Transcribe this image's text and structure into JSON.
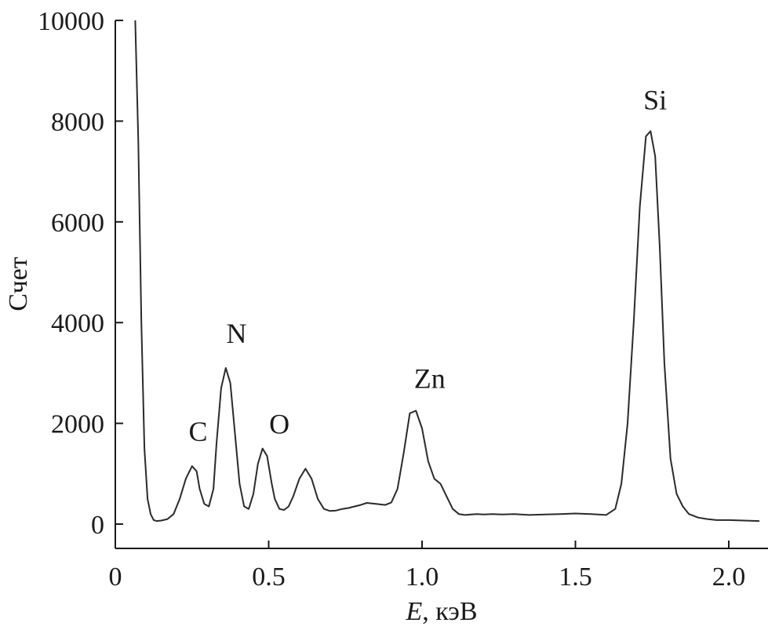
{
  "chart_data": {
    "type": "line",
    "title": "",
    "xlabel_italic": "E",
    "xlabel_rest": ", кэВ",
    "ylabel": "Счет",
    "xlim": [
      0,
      2.1
    ],
    "ylim": [
      0,
      10000
    ],
    "x_ticks": [
      {
        "value": 0,
        "label": "0"
      },
      {
        "value": 0.5,
        "label": "0.5"
      },
      {
        "value": 1.0,
        "label": "1.0"
      },
      {
        "value": 1.5,
        "label": "1.5"
      },
      {
        "value": 2.0,
        "label": "2.0"
      }
    ],
    "y_ticks": [
      {
        "value": 0,
        "label": "0"
      },
      {
        "value": 2000,
        "label": "2000"
      },
      {
        "value": 4000,
        "label": "4000"
      },
      {
        "value": 6000,
        "label": "6000"
      },
      {
        "value": 8000,
        "label": "8000"
      },
      {
        "value": 10000,
        "label": "10000"
      }
    ],
    "grid": false,
    "annotations": [
      {
        "text": "C",
        "x": 0.27,
        "y": 1650
      },
      {
        "text": "N",
        "x": 0.395,
        "y": 3600
      },
      {
        "text": "O",
        "x": 0.535,
        "y": 1800
      },
      {
        "text": "Zn",
        "x": 1.025,
        "y": 2700
      },
      {
        "text": "Si",
        "x": 1.76,
        "y": 8230
      }
    ],
    "series": [
      {
        "x": [
          0.065,
          0.075,
          0.085,
          0.095,
          0.105,
          0.115,
          0.125,
          0.135,
          0.15,
          0.17,
          0.19,
          0.21,
          0.23,
          0.25,
          0.265,
          0.275,
          0.29,
          0.305,
          0.32,
          0.33,
          0.345,
          0.36,
          0.375,
          0.39,
          0.405,
          0.42,
          0.435,
          0.45,
          0.465,
          0.48,
          0.495,
          0.51,
          0.52,
          0.535,
          0.55,
          0.565,
          0.58,
          0.6,
          0.62,
          0.64,
          0.66,
          0.68,
          0.7,
          0.72,
          0.74,
          0.76,
          0.78,
          0.8,
          0.82,
          0.85,
          0.88,
          0.9,
          0.92,
          0.94,
          0.96,
          0.98,
          1.0,
          1.02,
          1.04,
          1.06,
          1.08,
          1.1,
          1.12,
          1.14,
          1.16,
          1.18,
          1.2,
          1.23,
          1.26,
          1.3,
          1.35,
          1.4,
          1.45,
          1.5,
          1.55,
          1.6,
          1.63,
          1.65,
          1.67,
          1.69,
          1.71,
          1.73,
          1.745,
          1.76,
          1.775,
          1.79,
          1.81,
          1.83,
          1.85,
          1.87,
          1.9,
          1.93,
          1.96,
          2.0,
          2.05,
          2.1
        ],
        "y": [
          10000,
          7600,
          4000,
          1500,
          500,
          200,
          80,
          60,
          70,
          100,
          200,
          500,
          900,
          1150,
          1050,
          700,
          400,
          350,
          700,
          1600,
          2700,
          3100,
          2800,
          1800,
          800,
          350,
          300,
          600,
          1200,
          1500,
          1350,
          800,
          500,
          300,
          280,
          350,
          550,
          900,
          1100,
          900,
          500,
          300,
          260,
          270,
          300,
          320,
          350,
          380,
          420,
          400,
          380,
          430,
          700,
          1400,
          2200,
          2250,
          1900,
          1250,
          900,
          800,
          550,
          300,
          200,
          180,
          190,
          200,
          190,
          200,
          190,
          200,
          180,
          190,
          200,
          210,
          200,
          180,
          300,
          800,
          2000,
          4000,
          6300,
          7700,
          7800,
          7300,
          5500,
          3200,
          1300,
          600,
          350,
          200,
          130,
          100,
          80,
          80,
          70,
          60
        ]
      }
    ]
  }
}
